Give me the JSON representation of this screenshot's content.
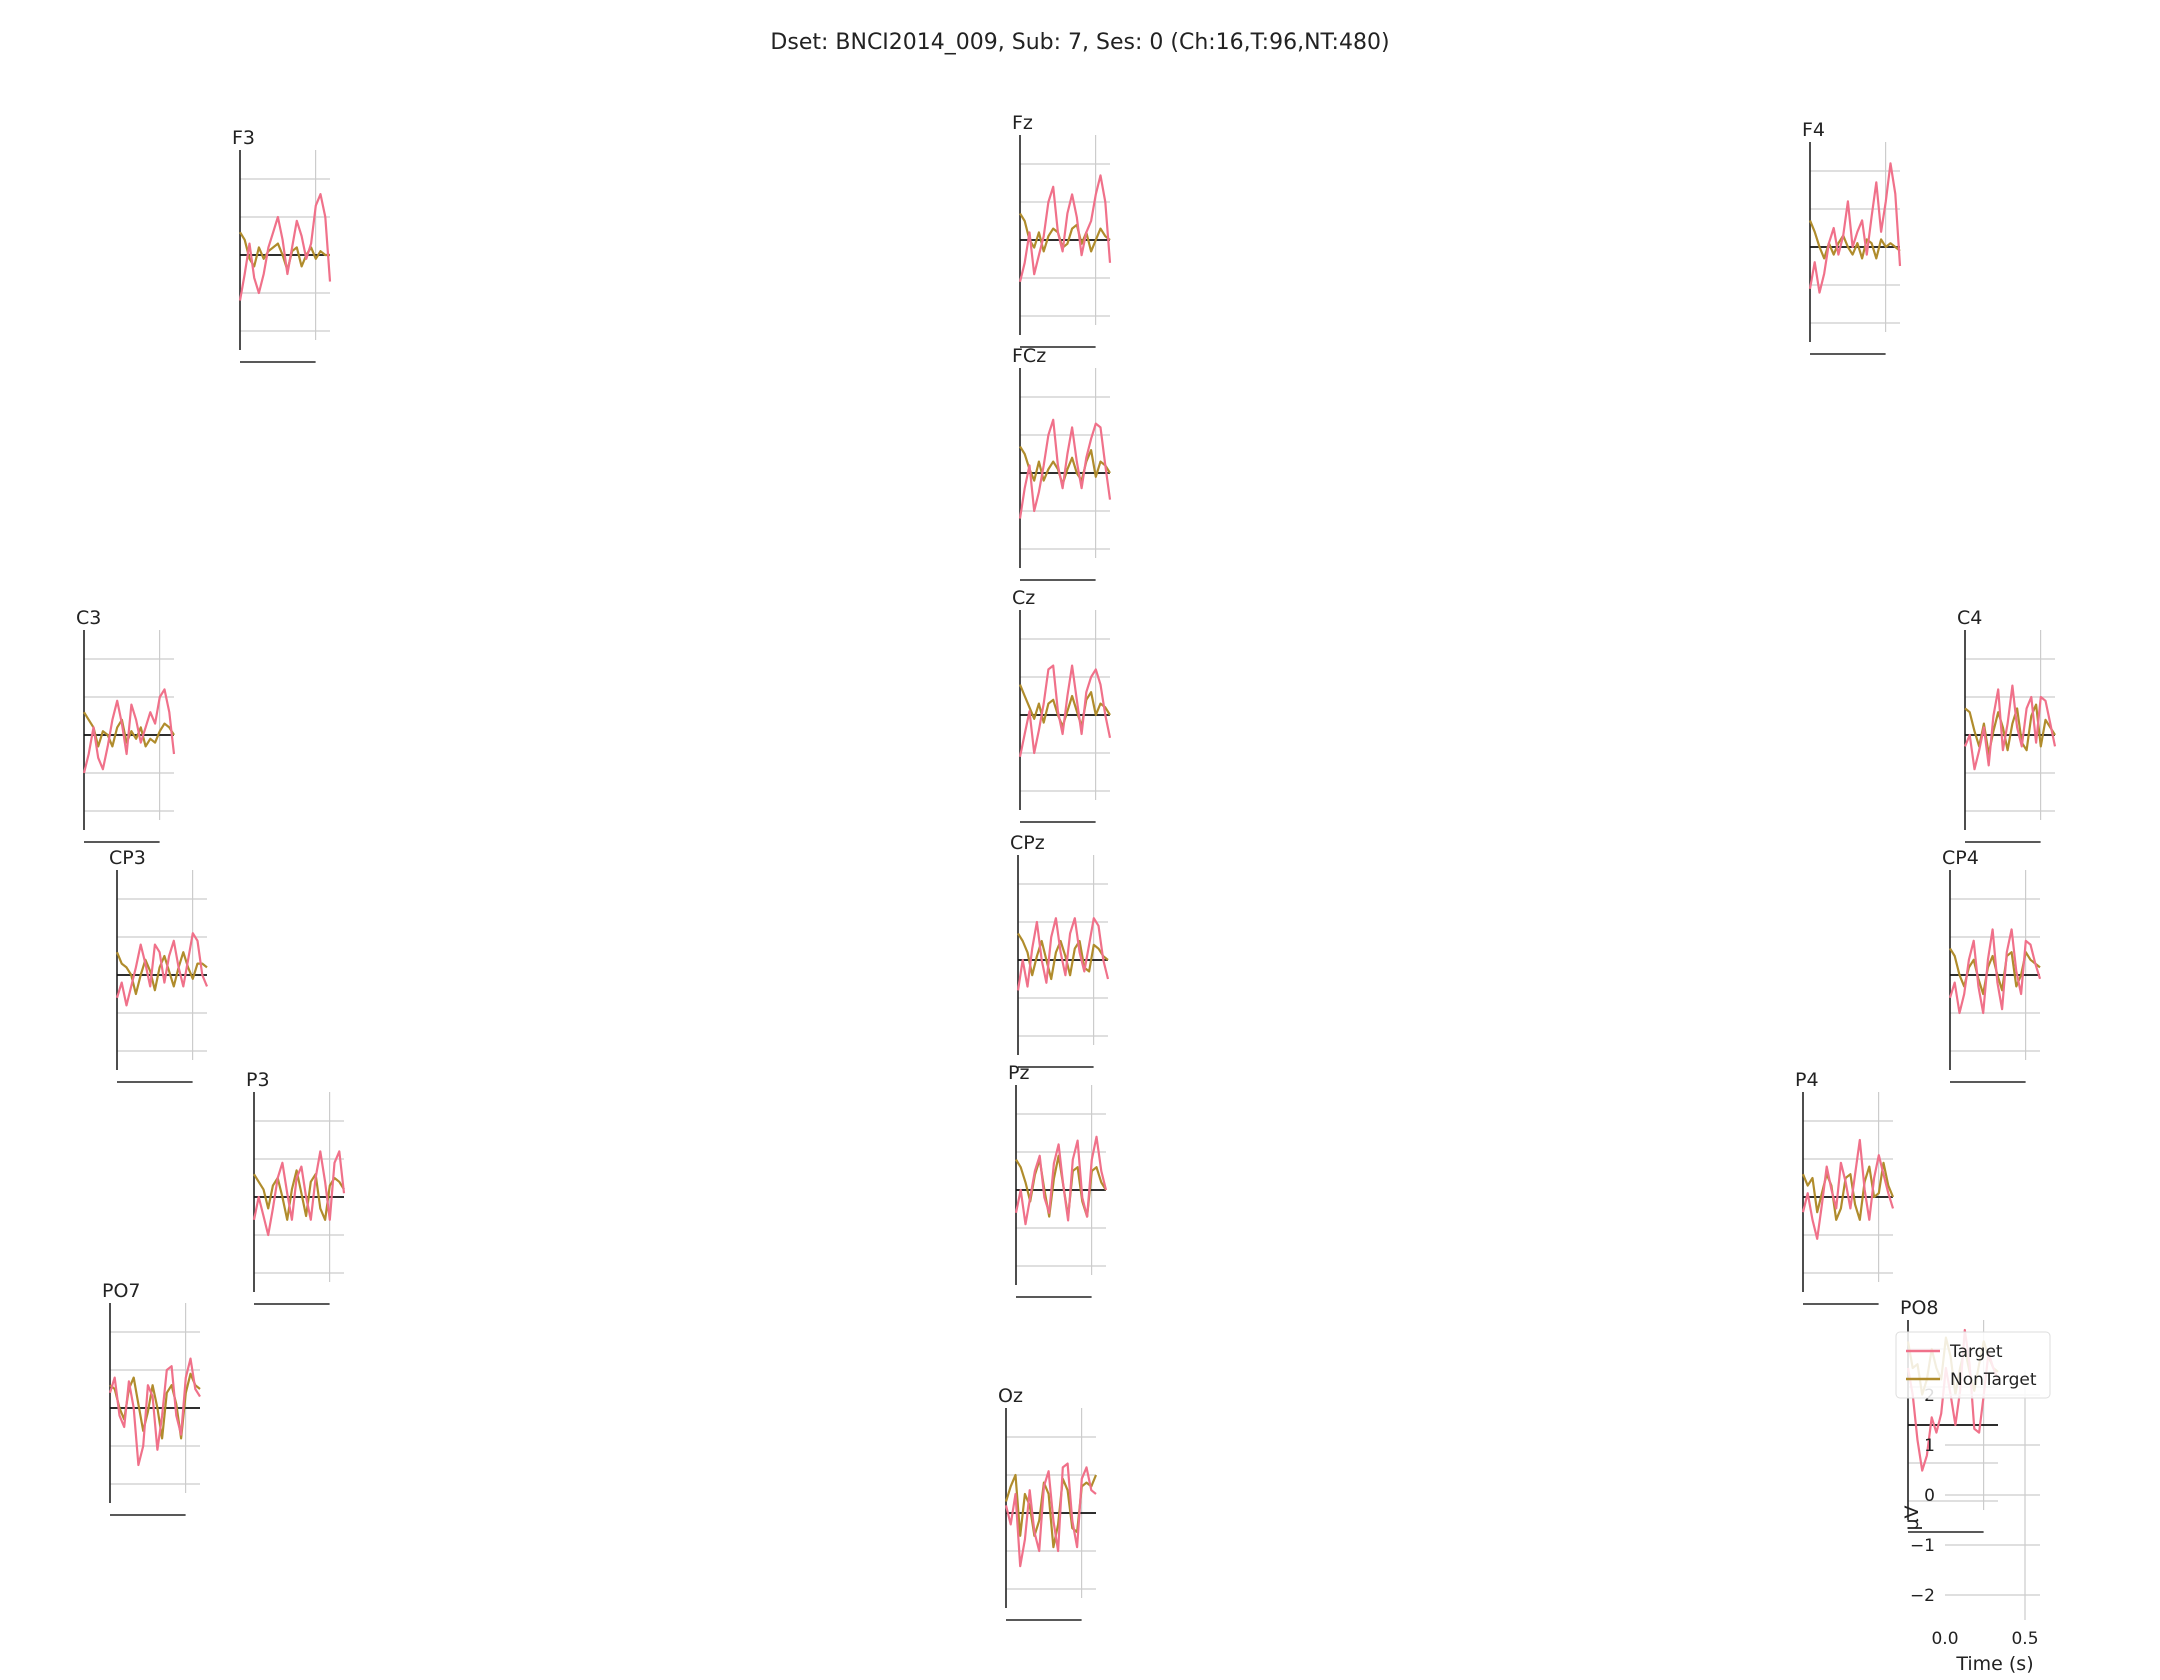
{
  "chart_data": {
    "type": "line",
    "title": "Dset: BNCI2014_009, Sub: 7, Ses: 0 (Ch:16,T:96,NT:480)",
    "xlabel": "Time (s)",
    "ylabel": "µV",
    "x_ticks": [
      "0.0",
      "0.5"
    ],
    "y_ticks": [
      "−2",
      "−1",
      "0",
      "1",
      "2"
    ],
    "xlim": [
      0,
      0.8
    ],
    "ylim": [
      -2.5,
      2.5
    ],
    "grid": true,
    "legend": {
      "location": "right",
      "entries": [
        {
          "name": "Target",
          "color": "#f0718a"
        },
        {
          "name": "NonTarget",
          "color": "#b08c2c"
        }
      ]
    },
    "series_names": [
      "Target",
      "NonTarget"
    ],
    "channels": [
      {
        "name": "F3",
        "target": [
          -1.2,
          -0.5,
          0.3,
          -0.6,
          -1.0,
          -0.5,
          0.2,
          0.6,
          1.0,
          0.4,
          -0.5,
          0.2,
          0.9,
          0.5,
          -0.1,
          0.3,
          1.3,
          1.6,
          1.0,
          -0.7
        ],
        "nontarget": [
          0.6,
          0.4,
          -0.1,
          -0.3,
          0.2,
          -0.1,
          0.1,
          0.2,
          0.3,
          0.0,
          -0.4,
          0.1,
          0.2,
          -0.3,
          0.0,
          0.2,
          -0.1,
          0.1,
          0.0,
          0.0
        ]
      },
      {
        "name": "Fz",
        "target": [
          -1.1,
          -0.6,
          0.2,
          -0.9,
          -0.4,
          0.1,
          1.0,
          1.4,
          0.2,
          -0.3,
          0.7,
          1.2,
          0.6,
          -0.4,
          0.2,
          0.5,
          1.2,
          1.7,
          1.0,
          -0.6
        ],
        "nontarget": [
          0.7,
          0.5,
          0.0,
          -0.2,
          0.2,
          -0.3,
          0.1,
          0.3,
          0.2,
          -0.2,
          -0.1,
          0.3,
          0.4,
          -0.1,
          0.2,
          -0.3,
          0.0,
          0.3,
          0.1,
          0.0
        ]
      },
      {
        "name": "F4",
        "target": [
          -1.1,
          -0.4,
          -1.2,
          -0.7,
          0.1,
          0.5,
          -0.2,
          0.3,
          1.2,
          0.0,
          0.4,
          0.7,
          -0.2,
          0.8,
          1.7,
          0.4,
          1.2,
          2.2,
          1.4,
          -0.5
        ],
        "nontarget": [
          0.7,
          0.4,
          0.0,
          -0.3,
          0.1,
          -0.2,
          0.1,
          0.3,
          0.0,
          -0.2,
          0.1,
          -0.3,
          0.2,
          0.1,
          -0.3,
          0.2,
          0.0,
          0.1,
          0.0,
          -0.1
        ]
      },
      {
        "name": "FCz",
        "target": [
          -1.2,
          -0.4,
          0.2,
          -1.0,
          -0.5,
          0.2,
          1.0,
          1.4,
          0.2,
          -0.4,
          0.5,
          1.2,
          0.3,
          -0.4,
          0.4,
          0.9,
          1.3,
          1.2,
          0.2,
          -0.7
        ],
        "nontarget": [
          0.7,
          0.5,
          0.1,
          -0.2,
          0.3,
          -0.2,
          0.1,
          0.3,
          0.1,
          -0.3,
          0.1,
          0.4,
          0.0,
          -0.2,
          0.3,
          0.6,
          -0.1,
          0.3,
          0.2,
          0.0
        ]
      },
      {
        "name": "C3",
        "target": [
          -1.0,
          -0.5,
          0.2,
          -0.6,
          -0.9,
          -0.3,
          0.4,
          0.9,
          0.3,
          -0.5,
          0.8,
          0.4,
          -0.2,
          0.2,
          0.6,
          0.3,
          1.0,
          1.2,
          0.6,
          -0.5
        ],
        "nontarget": [
          0.6,
          0.4,
          0.2,
          -0.3,
          0.1,
          0.0,
          -0.3,
          0.2,
          0.4,
          -0.2,
          0.1,
          -0.1,
          0.2,
          -0.3,
          -0.1,
          -0.2,
          0.1,
          0.3,
          0.2,
          0.0
        ]
      },
      {
        "name": "Cz",
        "target": [
          -1.1,
          -0.5,
          0.1,
          -1.0,
          -0.4,
          0.3,
          1.2,
          1.3,
          0.1,
          -0.5,
          0.5,
          1.3,
          0.4,
          -0.5,
          0.6,
          1.0,
          1.2,
          0.8,
          0.0,
          -0.6
        ],
        "nontarget": [
          0.8,
          0.5,
          0.2,
          -0.1,
          0.3,
          -0.2,
          0.3,
          0.4,
          0.0,
          -0.3,
          0.1,
          0.5,
          0.1,
          -0.3,
          0.4,
          0.6,
          0.0,
          0.3,
          0.2,
          0.0
        ]
      },
      {
        "name": "C4",
        "target": [
          -0.3,
          0.0,
          -0.9,
          -0.4,
          0.2,
          -0.8,
          0.5,
          1.2,
          -0.4,
          0.3,
          1.3,
          0.2,
          -0.3,
          0.7,
          1.0,
          -0.2,
          1.0,
          0.9,
          0.3,
          -0.3
        ],
        "nontarget": [
          0.7,
          0.6,
          0.1,
          -0.3,
          0.3,
          -0.5,
          0.1,
          0.6,
          0.2,
          -0.4,
          0.3,
          0.7,
          -0.2,
          -0.4,
          0.5,
          0.8,
          -0.3,
          0.4,
          0.2,
          0.0
        ]
      },
      {
        "name": "CP3",
        "target": [
          -0.6,
          -0.2,
          -0.8,
          -0.3,
          0.2,
          0.8,
          0.3,
          -0.3,
          0.8,
          0.6,
          -0.2,
          0.5,
          0.9,
          0.2,
          -0.3,
          0.4,
          1.1,
          0.9,
          0.0,
          -0.3
        ],
        "nontarget": [
          0.6,
          0.3,
          0.2,
          0.0,
          -0.5,
          0.0,
          0.4,
          0.1,
          -0.4,
          0.2,
          0.5,
          0.1,
          -0.3,
          0.2,
          0.6,
          0.2,
          -0.1,
          0.3,
          0.3,
          0.2
        ]
      },
      {
        "name": "CPz",
        "target": [
          -0.8,
          0.0,
          -0.7,
          0.3,
          1.0,
          0.0,
          -0.6,
          0.6,
          1.1,
          0.2,
          -0.4,
          0.7,
          1.1,
          0.2,
          -0.3,
          0.4,
          1.1,
          0.9,
          0.0,
          -0.5
        ],
        "nontarget": [
          0.7,
          0.5,
          0.2,
          -0.4,
          0.1,
          0.5,
          0.0,
          -0.5,
          0.2,
          0.5,
          0.1,
          -0.4,
          0.3,
          0.5,
          -0.2,
          -0.3,
          0.4,
          0.3,
          0.1,
          0.0
        ]
      },
      {
        "name": "CP4",
        "target": [
          -0.6,
          -0.2,
          -1.0,
          -0.5,
          0.4,
          0.9,
          -0.3,
          -1.0,
          0.4,
          1.2,
          -0.2,
          -0.9,
          0.6,
          1.2,
          0.1,
          -0.5,
          0.9,
          0.8,
          0.3,
          -0.1
        ],
        "nontarget": [
          0.7,
          0.5,
          0.0,
          -0.3,
          0.2,
          0.4,
          -0.1,
          -0.5,
          0.2,
          0.5,
          0.0,
          -0.4,
          0.5,
          0.6,
          -0.3,
          0.0,
          0.6,
          0.4,
          0.3,
          0.2
        ]
      },
      {
        "name": "P3",
        "target": [
          -0.6,
          0.0,
          -0.5,
          -1.0,
          -0.3,
          0.5,
          0.9,
          0.1,
          -0.6,
          0.5,
          0.8,
          0.0,
          -0.6,
          0.5,
          1.2,
          0.4,
          -0.6,
          0.9,
          1.2,
          0.1
        ],
        "nontarget": [
          0.6,
          0.4,
          0.2,
          -0.3,
          0.3,
          0.5,
          0.0,
          -0.6,
          0.2,
          0.7,
          0.1,
          -0.5,
          0.4,
          0.6,
          -0.3,
          -0.6,
          0.3,
          0.5,
          0.4,
          0.2
        ]
      },
      {
        "name": "Pz",
        "target": [
          -0.6,
          0.0,
          -0.9,
          -0.2,
          0.5,
          0.9,
          -0.2,
          -0.6,
          0.7,
          1.2,
          0.1,
          -0.8,
          0.8,
          1.3,
          -0.2,
          -0.7,
          0.8,
          1.4,
          0.5,
          0.0
        ],
        "nontarget": [
          0.8,
          0.6,
          0.2,
          -0.3,
          0.4,
          0.8,
          0.0,
          -0.7,
          0.3,
          0.9,
          0.1,
          -0.7,
          0.5,
          0.6,
          -0.3,
          -0.7,
          0.5,
          0.6,
          0.2,
          0.0
        ]
      },
      {
        "name": "P4",
        "target": [
          -0.4,
          0.1,
          -0.6,
          -1.1,
          -0.2,
          0.8,
          0.2,
          -0.3,
          0.9,
          0.4,
          -0.3,
          0.6,
          1.5,
          0.2,
          -0.6,
          0.5,
          1.1,
          0.6,
          0.1,
          -0.3
        ],
        "nontarget": [
          0.6,
          0.3,
          0.5,
          -0.4,
          0.1,
          0.6,
          0.3,
          -0.6,
          -0.3,
          0.5,
          0.6,
          -0.2,
          -0.6,
          0.4,
          0.8,
          0.0,
          0.1,
          0.9,
          0.3,
          0.0
        ]
      },
      {
        "name": "PO7",
        "target": [
          0.4,
          0.8,
          -0.2,
          -0.5,
          0.7,
          0.0,
          -1.5,
          -1.0,
          0.6,
          0.3,
          -1.1,
          -0.2,
          1.0,
          1.1,
          -0.2,
          -0.7,
          0.8,
          1.3,
          0.5,
          0.3
        ],
        "nontarget": [
          0.6,
          0.5,
          0.0,
          -0.3,
          0.5,
          0.8,
          0.1,
          -0.6,
          -0.1,
          0.6,
          0.0,
          -0.8,
          0.4,
          0.6,
          0.1,
          -0.8,
          0.4,
          0.9,
          0.6,
          0.5
        ]
      },
      {
        "name": "Oz",
        "target": [
          0.2,
          -0.3,
          0.5,
          -1.4,
          -0.7,
          0.6,
          -0.5,
          -1.0,
          0.7,
          1.1,
          -0.2,
          -1.0,
          1.2,
          1.3,
          -0.2,
          -0.9,
          0.9,
          1.2,
          0.6,
          0.5
        ],
        "nontarget": [
          0.3,
          0.7,
          1.0,
          -0.6,
          0.5,
          0.2,
          -0.6,
          -0.2,
          0.8,
          0.5,
          -0.9,
          -0.3,
          0.9,
          0.6,
          -0.4,
          -0.5,
          0.7,
          0.8,
          0.7,
          1.0
        ]
      },
      {
        "name": "PO8",
        "target": [
          1.5,
          0.8,
          -0.4,
          -1.2,
          -0.8,
          0.2,
          -0.2,
          0.3,
          1.5,
          0.8,
          0.0,
          0.9,
          2.5,
          1.6,
          -0.1,
          -0.2,
          0.8,
          1.9,
          1.5,
          1.2
        ],
        "nontarget": [
          2.2,
          1.5,
          1.6,
          0.8,
          1.2,
          2.0,
          1.5,
          1.2,
          2.3,
          1.8,
          0.8,
          1.5,
          2.0,
          1.4,
          0.9,
          1.6,
          2.2,
          1.8,
          1.5,
          1.4
        ]
      }
    ]
  }
}
